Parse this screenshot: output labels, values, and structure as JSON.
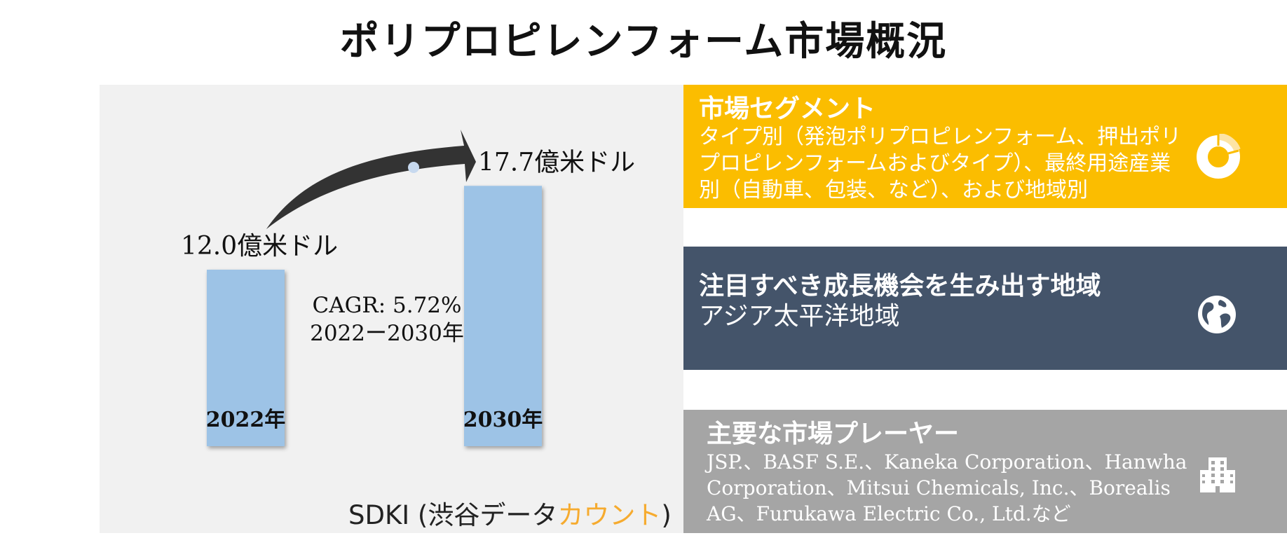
{
  "title": "ポリプロピレンフォーム市場概況",
  "chart_data": {
    "type": "bar",
    "categories": [
      "2022年",
      "2030年"
    ],
    "values": [
      12.0,
      17.7
    ],
    "value_labels": [
      "12.0億米ドル",
      "17.7億米ドル"
    ],
    "unit": "億米ドル",
    "cagr_label": "CAGR: 5.72%",
    "cagr_period": "2022ー2030年",
    "bar_color": "#9dc3e6",
    "arrow_color": "#333333"
  },
  "brand": {
    "prefix": "SDKI (渋谷データ",
    "accent": "カウント",
    "suffix": ")",
    "accent_color": "#f6ab2f"
  },
  "segments": {
    "heading": "市場セグメント",
    "body": "タイプ別（発泡ポリプロピレンフォーム、押出ポリプロピレンフォームおよびタイプ）、最終用途産業別（自動車、包装、など）、および地域別",
    "icon": "donut-chart-icon",
    "color": "#fbbd00"
  },
  "region": {
    "heading": "注目すべき成長機会を生み出す地域",
    "body": "アジア太平洋地域",
    "icon": "globe-icon",
    "color": "#44546a"
  },
  "players": {
    "heading": "主要な市場プレーヤー",
    "body": "JSP.、BASF S.E.、Kaneka Corporation、Hanwha Corporation、Mitsui Chemicals, Inc.、Borealis AG、Furukawa Electric Co., Ltd.など",
    "icon": "office-building-icon",
    "color": "#a5a5a5"
  }
}
